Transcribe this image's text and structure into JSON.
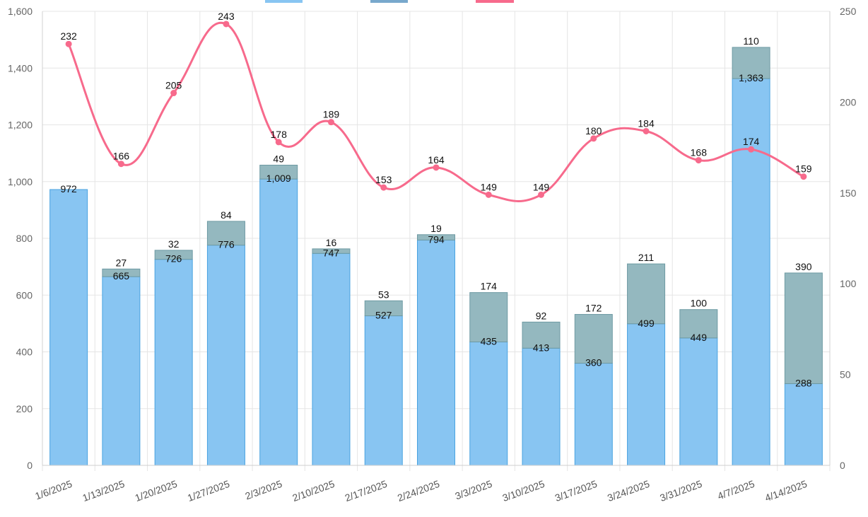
{
  "chart_data": {
    "type": "bar",
    "categories": [
      "1/6/2025",
      "1/13/2025",
      "1/20/2025",
      "1/27/2025",
      "2/3/2025",
      "2/10/2025",
      "2/17/2025",
      "2/24/2025",
      "3/3/2025",
      "3/10/2025",
      "3/17/2025",
      "3/24/2025",
      "3/31/2025",
      "4/7/2025",
      "4/14/2025"
    ],
    "series": [
      {
        "type": "bar",
        "stack": "bars",
        "axis": "left",
        "color": "#88c5f2",
        "border": "#4aa3e0",
        "values": [
          972,
          665,
          726,
          776,
          1009,
          747,
          527,
          794,
          435,
          413,
          360,
          499,
          449,
          1363,
          288
        ]
      },
      {
        "type": "bar",
        "stack": "bars",
        "axis": "left",
        "color": "#94b8bf",
        "border": "#6e9aa3",
        "values": [
          0,
          27,
          32,
          84,
          49,
          16,
          53,
          19,
          174,
          92,
          172,
          211,
          100,
          110,
          390
        ]
      },
      {
        "type": "line",
        "axis": "right",
        "color": "#f76a8c",
        "values": [
          232,
          166,
          205,
          243,
          178,
          189,
          153,
          164,
          149,
          149,
          180,
          184,
          168,
          174,
          159
        ]
      }
    ],
    "y_left": {
      "min": 0,
      "max": 1600,
      "step": 200
    },
    "y_right": {
      "min": 0,
      "max": 250,
      "step": 50
    },
    "grid": true,
    "legend": "top"
  }
}
